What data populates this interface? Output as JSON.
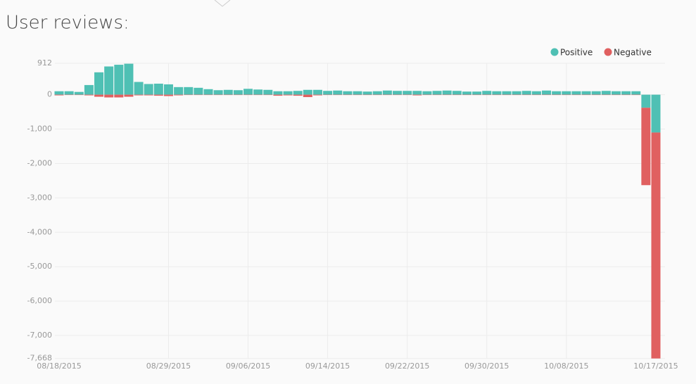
{
  "chart_data": {
    "type": "bar",
    "stacked": true,
    "title": "User reviews:",
    "categories": [
      "08/18/2015",
      null,
      null,
      null,
      null,
      null,
      null,
      null,
      null,
      null,
      null,
      "08/29/2015",
      null,
      null,
      null,
      null,
      null,
      null,
      null,
      "09/06/2015",
      null,
      null,
      null,
      null,
      null,
      null,
      null,
      "09/14/2015",
      null,
      null,
      null,
      null,
      null,
      null,
      null,
      "09/22/2015",
      null,
      null,
      null,
      null,
      null,
      null,
      null,
      "09/30/2015",
      null,
      null,
      null,
      null,
      null,
      null,
      null,
      "10/08/2015",
      null,
      null,
      null,
      null,
      null,
      null,
      null,
      null,
      "10/17/2015"
    ],
    "series": [
      {
        "name": "Positive",
        "color": "#4fc0b4",
        "values": [
          100,
          100,
          80,
          280,
          650,
          820,
          870,
          900,
          370,
          310,
          320,
          300,
          220,
          220,
          200,
          160,
          130,
          140,
          130,
          170,
          150,
          140,
          100,
          100,
          110,
          140,
          140,
          110,
          120,
          100,
          100,
          90,
          100,
          120,
          110,
          110,
          110,
          100,
          110,
          120,
          110,
          90,
          90,
          110,
          100,
          100,
          100,
          110,
          100,
          120,
          100,
          100,
          100,
          100,
          100,
          110,
          100,
          100,
          100,
          -380,
          -1100
        ]
      },
      {
        "name": "Negative",
        "color": "#e06060",
        "values": [
          -20,
          -10,
          -10,
          -20,
          -60,
          -80,
          -80,
          -60,
          -20,
          -20,
          -30,
          -40,
          -20,
          -10,
          -10,
          -10,
          -10,
          -10,
          -10,
          -10,
          -10,
          -10,
          -30,
          -20,
          -30,
          -70,
          -20,
          -10,
          -10,
          -10,
          -10,
          -10,
          -10,
          -10,
          -10,
          -10,
          -20,
          -10,
          -10,
          -10,
          -10,
          -10,
          -10,
          -10,
          -10,
          -10,
          -10,
          -10,
          -10,
          -10,
          -10,
          -10,
          -10,
          -10,
          -10,
          -10,
          -10,
          -10,
          -10,
          -2250,
          -6568
        ]
      }
    ],
    "ylim": [
      -7668,
      912
    ],
    "yticks": [
      912,
      0,
      {
        "value": -1000,
        "label": "-1,000"
      },
      {
        "value": -2000,
        "label": "-2,000"
      },
      {
        "value": -3000,
        "label": "-3,000"
      },
      {
        "value": -4000,
        "label": "-4,000"
      },
      {
        "value": -5000,
        "label": "-5,000"
      },
      {
        "value": -6000,
        "label": "-6,000"
      },
      {
        "value": -7000,
        "label": "-7,000"
      },
      {
        "value": -7668,
        "label": "-7,668"
      }
    ],
    "grid": true,
    "legend": "top-right"
  }
}
